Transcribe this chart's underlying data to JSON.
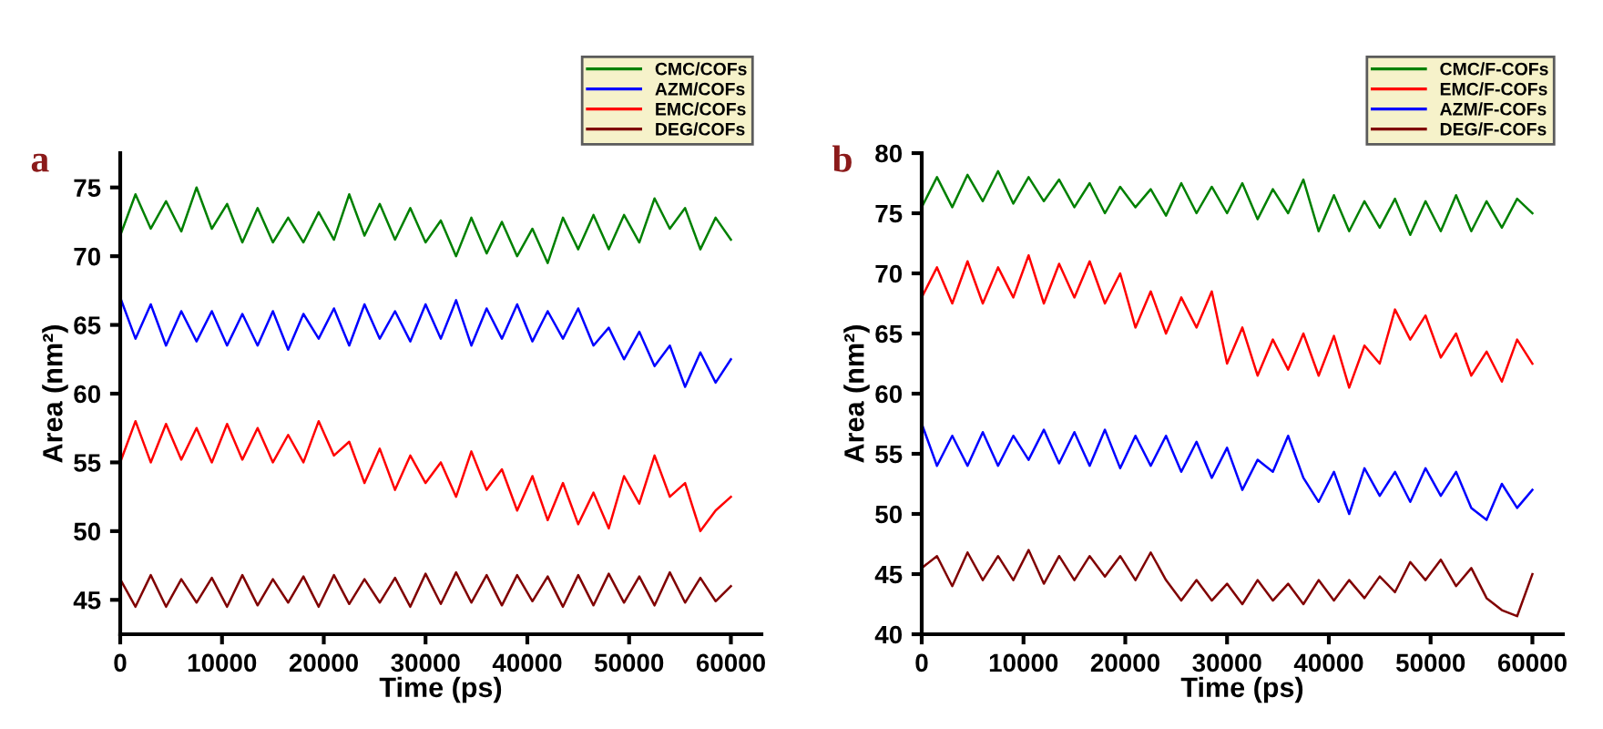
{
  "chart_data": [
    {
      "type": "line",
      "title": "a",
      "xlabel": "Time (ps)",
      "ylabel": "Area (nm²)",
      "x": [
        0,
        1500,
        3000,
        4500,
        6000,
        7500,
        9000,
        10500,
        12000,
        13500,
        15000,
        16500,
        18000,
        19500,
        21000,
        22500,
        24000,
        25500,
        27000,
        28500,
        30000,
        31500,
        33000,
        34500,
        36000,
        37500,
        39000,
        40500,
        42000,
        43500,
        45000,
        46500,
        48000,
        49500,
        51000,
        52500,
        54000,
        55500,
        57000,
        58500,
        60000
      ],
      "xlim": [
        0,
        63000
      ],
      "xticks": [
        0,
        10000,
        20000,
        30000,
        40000,
        50000,
        60000
      ],
      "ylim": [
        42.5,
        77.5
      ],
      "yticks": [
        45,
        50,
        55,
        60,
        65,
        70,
        75
      ],
      "legend": "top right",
      "grid": false,
      "series": [
        {
          "name": "CMC/COFs",
          "color": "#008000",
          "values": [
            71.5,
            74.5,
            72,
            74,
            71.8,
            75,
            72,
            73.8,
            71,
            73.5,
            71,
            72.8,
            71,
            73.2,
            71.2,
            74.5,
            71.5,
            73.8,
            71.2,
            73.5,
            71,
            72.6,
            70,
            72.8,
            70.2,
            72.5,
            70,
            72,
            69.5,
            72.8,
            70.5,
            73,
            70.5,
            73,
            71,
            74.2,
            72,
            73.5,
            70.5,
            72.8,
            71.2
          ]
        },
        {
          "name": "AZM/COFs",
          "color": "#0000ff",
          "values": [
            67,
            64,
            66.5,
            63.5,
            66,
            63.8,
            66,
            63.5,
            65.8,
            63.5,
            66,
            63.2,
            65.8,
            64,
            66.2,
            63.5,
            66.5,
            64,
            66,
            63.8,
            66.5,
            64,
            66.8,
            63.5,
            66.2,
            64,
            66.5,
            63.8,
            66,
            64,
            66.2,
            63.5,
            64.8,
            62.5,
            64.5,
            62,
            63.5,
            60.5,
            63,
            60.8,
            62.5
          ]
        },
        {
          "name": "EMC/COFs",
          "color": "#ff0000",
          "values": [
            55,
            58,
            55,
            57.8,
            55.2,
            57.5,
            55,
            57.8,
            55.2,
            57.5,
            55,
            57,
            55,
            58,
            55.5,
            56.5,
            53.5,
            56,
            53,
            55.5,
            53.5,
            55,
            52.5,
            55.8,
            53,
            54.5,
            51.5,
            54,
            50.8,
            53.5,
            50.5,
            52.8,
            50.2,
            54,
            52,
            55.5,
            52.5,
            53.5,
            50,
            51.5,
            52.5
          ]
        },
        {
          "name": "DEG/COFs",
          "color": "#800000",
          "values": [
            46.5,
            44.5,
            46.8,
            44.5,
            46.5,
            44.8,
            46.6,
            44.5,
            46.8,
            44.6,
            46.5,
            44.8,
            46.7,
            44.5,
            46.8,
            44.7,
            46.5,
            44.8,
            46.6,
            44.5,
            46.9,
            44.7,
            47,
            44.8,
            46.8,
            44.6,
            46.8,
            44.9,
            46.7,
            44.5,
            46.8,
            44.6,
            46.9,
            44.8,
            46.7,
            44.6,
            47,
            44.8,
            46.6,
            44.9,
            46
          ]
        }
      ]
    },
    {
      "type": "line",
      "title": "b",
      "xlabel": "Time (ps)",
      "ylabel": "Area (nm²)",
      "x": [
        0,
        1500,
        3000,
        4500,
        6000,
        7500,
        9000,
        10500,
        12000,
        13500,
        15000,
        16500,
        18000,
        19500,
        21000,
        22500,
        24000,
        25500,
        27000,
        28500,
        30000,
        31500,
        33000,
        34500,
        36000,
        37500,
        39000,
        40500,
        42000,
        43500,
        45000,
        46500,
        48000,
        49500,
        51000,
        52500,
        54000,
        55500,
        57000,
        58500,
        60000
      ],
      "xlim": [
        0,
        63000
      ],
      "xticks": [
        0,
        10000,
        20000,
        30000,
        40000,
        50000,
        60000
      ],
      "ylim": [
        40,
        80
      ],
      "yticks": [
        40,
        45,
        50,
        55,
        60,
        65,
        70,
        75,
        80
      ],
      "legend": "top right",
      "grid": false,
      "series": [
        {
          "name": "CMC/F-COFs",
          "color": "#008000",
          "values": [
            75.5,
            78,
            75.5,
            78.2,
            76,
            78.5,
            75.8,
            78,
            76,
            77.8,
            75.5,
            77.5,
            75,
            77.2,
            75.5,
            77,
            74.8,
            77.5,
            75,
            77.2,
            75,
            77.5,
            74.5,
            77,
            75,
            77.8,
            73.5,
            76.5,
            73.5,
            76,
            73.8,
            76.2,
            73.2,
            76,
            73.5,
            76.5,
            73.5,
            76,
            73.8,
            76.2,
            75
          ]
        },
        {
          "name": "EMC/F-COFs",
          "color": "#ff0000",
          "values": [
            68,
            70.5,
            67.5,
            71,
            67.5,
            70.5,
            68,
            71.5,
            67.5,
            70.8,
            68,
            71,
            67.5,
            70,
            65.5,
            68.5,
            65,
            68,
            65.5,
            68.5,
            62.5,
            65.5,
            61.5,
            64.5,
            62,
            65,
            61.5,
            64.8,
            60.5,
            64,
            62.5,
            67,
            64.5,
            66.5,
            63,
            65,
            61.5,
            63.5,
            61,
            64.5,
            62.5
          ]
        },
        {
          "name": "AZM/F-COFs",
          "color": "#0000ff",
          "values": [
            57.5,
            54,
            56.5,
            54,
            56.8,
            54,
            56.5,
            54.5,
            57,
            54.2,
            56.8,
            54,
            57,
            53.8,
            56.5,
            54,
            56.5,
            53.5,
            56,
            53,
            55.5,
            52,
            54.5,
            53.5,
            56.5,
            53,
            51,
            53.5,
            50,
            53.8,
            51.5,
            53.5,
            51,
            53.8,
            51.5,
            53.5,
            50.5,
            49.5,
            52.5,
            50.5,
            52
          ]
        },
        {
          "name": "DEG/F-COFs",
          "color": "#800000",
          "values": [
            45.5,
            46.5,
            44,
            46.8,
            44.5,
            46.5,
            44.5,
            47,
            44.2,
            46.5,
            44.5,
            46.5,
            44.8,
            46.5,
            44.5,
            46.8,
            44.5,
            42.8,
            44.5,
            42.8,
            44.2,
            42.5,
            44.5,
            42.8,
            44.2,
            42.5,
            44.5,
            42.8,
            44.5,
            43,
            44.8,
            43.5,
            46,
            44.5,
            46.2,
            44,
            45.5,
            43,
            42,
            41.5,
            45
          ]
        }
      ]
    }
  ]
}
